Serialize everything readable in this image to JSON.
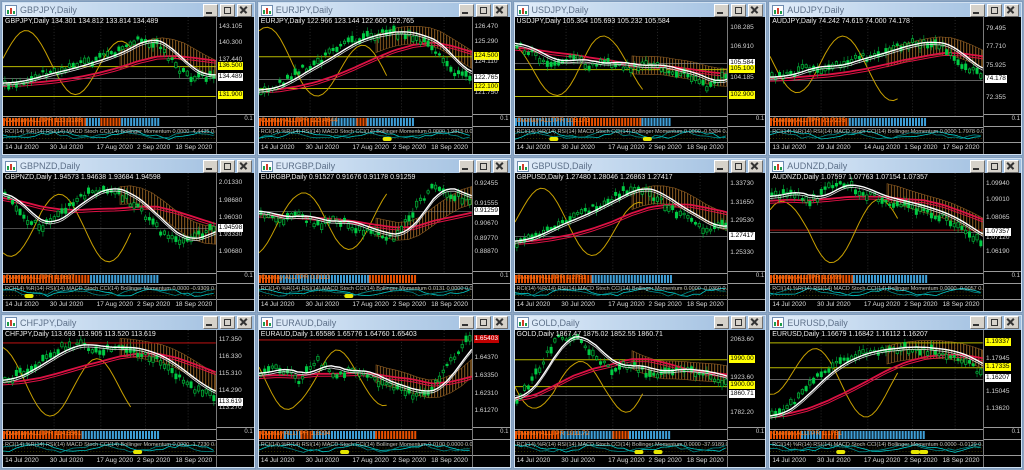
{
  "workspace": {
    "name": "MetaTrader multi-chart workspace",
    "grid": "4x3",
    "colors": {
      "workspace_bg": "#8ea6c2",
      "chart_bg": "#000000",
      "candle_green": "#00cc44",
      "ma_white": "#ffffff",
      "ma_red": "#dd1144",
      "osc_yellow": "#c8a000",
      "cloud_brown": "#8a5a20",
      "hist_orange": "#e85000",
      "hist_blue": "#3f9fd8",
      "osc_cyan": "#00c8c8",
      "level_yellow": "#ffff00",
      "current_white": "#ffffff"
    },
    "axis_mini_hist": "0.1",
    "window_buttons": [
      "minimize",
      "restore",
      "close"
    ]
  },
  "panels": [
    {
      "id": "gbpjpy",
      "title": "GBPJPY,Daily",
      "ohlc": "GBPJPY,Daily  134.301 134.812 133.814 134.489",
      "ind1": "Overlay ALLTPR 133.9188",
      "ind2": "RCI(14) %R(14) RSI(14) MACD Stoch CCI(14) Bollinger Momentum 0.0000 -4.4435 0.0",
      "dates": [
        "14 Jul 2020",
        "30 Jul 2020",
        "17 Aug 2020",
        "2 Sep 2020",
        "18 Sep 2020"
      ],
      "price_labels": [
        {
          "text": "143.105",
          "kind": "plain",
          "p": 0.1
        },
        {
          "text": "140.300",
          "kind": "plain",
          "p": 0.27
        },
        {
          "text": "137.440",
          "kind": "plain",
          "p": 0.44
        },
        {
          "text": "136.500",
          "kind": "yellow",
          "p": 0.5
        },
        {
          "text": "134.489",
          "kind": "white",
          "p": 0.62
        },
        {
          "text": "131.900",
          "kind": "yellow",
          "p": 0.8
        }
      ],
      "shape": [
        0.32,
        0.36,
        0.42,
        0.46,
        0.52,
        0.58,
        0.66,
        0.78,
        0.72,
        0.5,
        0.38,
        0.42
      ],
      "hist": [
        [
          "o",
          0.4
        ],
        [
          "b",
          0.07
        ],
        [
          "o",
          0.1
        ],
        [
          "b",
          0.18
        ]
      ],
      "red_lines": [],
      "osc_marks": []
    },
    {
      "id": "eurjpy",
      "title": "EURJPY,Daily",
      "ohlc": "EURJPY,Daily  122.966 123.144 122.600 122.765",
      "ind1": "Overlay ALLTPR 123.4644",
      "ind2": "RCI(14) %R(14) RSI(14) MACD Stoch CCI(14) Bollinger Momentum 0.0000 1.9815 0.0",
      "dates": [
        "14 Jul 2020",
        "30 Jul 2020",
        "17 Aug 2020",
        "2 Sep 2020",
        "18 Sep 2020"
      ],
      "price_labels": [
        {
          "text": "126.470",
          "kind": "plain",
          "p": 0.1
        },
        {
          "text": "125.290",
          "kind": "plain",
          "p": 0.26
        },
        {
          "text": "124.500",
          "kind": "yellow",
          "p": 0.4
        },
        {
          "text": "124.110",
          "kind": "plain",
          "p": 0.46
        },
        {
          "text": "122.765",
          "kind": "white",
          "p": 0.63
        },
        {
          "text": "122.100",
          "kind": "yellow",
          "p": 0.72
        },
        {
          "text": "121.750",
          "kind": "plain",
          "p": 0.78
        }
      ],
      "shape": [
        0.25,
        0.32,
        0.45,
        0.55,
        0.68,
        0.78,
        0.82,
        0.85,
        0.8,
        0.72,
        0.45,
        0.4
      ],
      "hist": [
        [
          "o",
          0.35
        ],
        [
          "b",
          0.12
        ],
        [
          "o",
          0.05
        ],
        [
          "b",
          0.23
        ]
      ],
      "red_lines": [],
      "osc_marks": [
        0.6
      ]
    },
    {
      "id": "usdjpy",
      "title": "USDJPY,Daily",
      "ohlc": "USDJPY,Daily  105.364 105.693 105.232 105.584",
      "ind1": "Overlay ALLTPR 105.173",
      "ind2": "RCI(14) %R(14) RSI(14) MACD Stoch CCI(14) Bollinger Momentum 0.0000 -0.5384 0.0",
      "dates": [
        "14 Jul 2020",
        "30 Jul 2020",
        "17 Aug 2020",
        "2 Sep 2020",
        "18 Sep 2020"
      ],
      "price_labels": [
        {
          "text": "108.285",
          "kind": "plain",
          "p": 0.11
        },
        {
          "text": "106.910",
          "kind": "plain",
          "p": 0.31
        },
        {
          "text": "105.584",
          "kind": "white",
          "p": 0.47
        },
        {
          "text": "105.100",
          "kind": "yellow",
          "p": 0.53
        },
        {
          "text": "104.185",
          "kind": "plain",
          "p": 0.63
        },
        {
          "text": "102.900",
          "kind": "yellow",
          "p": 0.8
        }
      ],
      "shape": [
        0.72,
        0.6,
        0.52,
        0.58,
        0.5,
        0.55,
        0.48,
        0.52,
        0.45,
        0.42,
        0.3,
        0.42
      ],
      "hist": [
        [
          "b",
          0.28
        ],
        [
          "o",
          0.33
        ],
        [
          "b",
          0.14
        ]
      ],
      "red_lines": [],
      "osc_marks": [
        0.18,
        0.62
      ]
    },
    {
      "id": "audjpy",
      "title": "AUDJPY,Daily",
      "ohlc": "AUDJPY,Daily  74.242 74.615 74.000 74.178",
      "ind1": "Overlay ALLTPR 73.7235",
      "ind2": "RCI(14) %R(14) RSI(14) MACD Stoch CCI(14) Bollinger Momentum 0.0000 1.7978 0.0",
      "dates": [
        "13 Jul 2020",
        "29 Jul 2020",
        "14 Aug 2020",
        "1 Sep 2020",
        "17 Sep 2020"
      ],
      "price_labels": [
        {
          "text": "79.495",
          "kind": "plain",
          "p": 0.12
        },
        {
          "text": "77.710",
          "kind": "plain",
          "p": 0.31
        },
        {
          "text": "75.925",
          "kind": "plain",
          "p": 0.5
        },
        {
          "text": "74.178",
          "kind": "white",
          "p": 0.64
        },
        {
          "text": "72.355",
          "kind": "plain",
          "p": 0.83
        }
      ],
      "shape": [
        0.38,
        0.42,
        0.5,
        0.48,
        0.55,
        0.6,
        0.66,
        0.72,
        0.74,
        0.7,
        0.5,
        0.42
      ],
      "hist": [
        [
          "o",
          0.38
        ],
        [
          "b",
          0.37
        ]
      ],
      "red_lines": [],
      "osc_marks": []
    },
    {
      "id": "gbpnzd",
      "title": "GBPNZD,Daily",
      "ohlc": "GBPNZD,Daily  1.94573 1.94638 1.93684 1.94598",
      "ind1": "Overlay ALLTPR 1.9697",
      "ind2": "RCI(14) %R(14) RSI(14) MACD Stoch CCI(14) Bollinger Momentum 0.0000 -0.9309 0.0",
      "dates": [
        "14 Jul 2020",
        "30 Jul 2020",
        "17 Aug 2020",
        "2 Sep 2020",
        "18 Sep 2020"
      ],
      "price_labels": [
        {
          "text": "2.01330",
          "kind": "plain",
          "p": 0.1
        },
        {
          "text": "1.98680",
          "kind": "plain",
          "p": 0.28
        },
        {
          "text": "1.96030",
          "kind": "plain",
          "p": 0.46
        },
        {
          "text": "1.94598",
          "kind": "white",
          "p": 0.56
        },
        {
          "text": "1.93330",
          "kind": "plain",
          "p": 0.63
        },
        {
          "text": "1.90680",
          "kind": "plain",
          "p": 0.81
        }
      ],
      "shape": [
        0.78,
        0.55,
        0.45,
        0.6,
        0.75,
        0.85,
        0.8,
        0.65,
        0.45,
        0.3,
        0.35,
        0.45
      ],
      "hist": [
        [
          "o",
          0.42
        ],
        [
          "b",
          0.33
        ]
      ],
      "red_lines": [],
      "osc_marks": [
        0.12
      ]
    },
    {
      "id": "eurgbp",
      "title": "EURGBP,Daily",
      "ohlc": "EURGBP,Daily  0.91527 0.91676 0.91178 0.91259",
      "ind1": "Overlay ALLTPR 0.9113",
      "ind2": "RCI(14) %R(14) RSI(14) MACD Stoch CCI(14) Bollinger Momentum 0.0131 0.0000 0.0",
      "dates": [
        "14 Jul 2020",
        "30 Jul 2020",
        "17 Aug 2020",
        "2 Sep 2020",
        "18 Sep 2020"
      ],
      "price_labels": [
        {
          "text": "0.92455",
          "kind": "plain",
          "p": 0.11
        },
        {
          "text": "0.91555",
          "kind": "plain",
          "p": 0.32
        },
        {
          "text": "0.91259",
          "kind": "white",
          "p": 0.39
        },
        {
          "text": "0.90670",
          "kind": "plain",
          "p": 0.52
        },
        {
          "text": "0.89770",
          "kind": "plain",
          "p": 0.67
        },
        {
          "text": "0.88870",
          "kind": "plain",
          "p": 0.81
        }
      ],
      "shape": [
        0.6,
        0.52,
        0.58,
        0.48,
        0.52,
        0.45,
        0.38,
        0.35,
        0.6,
        0.88,
        0.78,
        0.72
      ],
      "hist": [
        [
          "o",
          0.1
        ],
        [
          "b",
          0.43
        ],
        [
          "o",
          0.22
        ]
      ],
      "red_lines": [],
      "osc_marks": [
        0.42
      ]
    },
    {
      "id": "gbpusd",
      "title": "GBPUSD,Daily",
      "ohlc": "GBPUSD,Daily  1.27480 1.28046 1.26863 1.27417",
      "ind1": "Overlay ALLTPR 1.2751",
      "ind2": "RCI(14) %R(14) RSI(14) MACD Stoch CCI(14) Bollinger Momentum 0.0000 -0.0360 0.0",
      "dates": [
        "14 Jul 2020",
        "30 Jul 2020",
        "17 Aug 2020",
        "2 Sep 2020",
        "18 Sep 2020"
      ],
      "price_labels": [
        {
          "text": "1.33730",
          "kind": "plain",
          "p": 0.11
        },
        {
          "text": "1.31650",
          "kind": "plain",
          "p": 0.3
        },
        {
          "text": "1.29530",
          "kind": "plain",
          "p": 0.49
        },
        {
          "text": "1.27417",
          "kind": "white",
          "p": 0.64
        },
        {
          "text": "1.25330",
          "kind": "plain",
          "p": 0.82
        }
      ],
      "shape": [
        0.3,
        0.38,
        0.48,
        0.55,
        0.65,
        0.75,
        0.85,
        0.8,
        0.65,
        0.55,
        0.42,
        0.48
      ],
      "hist": [
        [
          "o",
          0.37
        ],
        [
          "b",
          0.38
        ]
      ],
      "red_lines": [],
      "osc_marks": []
    },
    {
      "id": "audnzd",
      "title": "AUDNZD,Daily",
      "ohlc": "AUDNZD,Daily  1.07597 1.07763 1.07154 1.07357",
      "ind1": "Overlay ALLTPR 1.0799",
      "ind2": "RCI(14) %R(14) RSI(14) MACD Stoch CCI(14) Bollinger Momentum 0.0000 -0.0057 0.0",
      "dates": [
        "14 Jul 2020",
        "30 Jul 2020",
        "17 Aug 2020",
        "2 Sep 2020",
        "18 Sep 2020"
      ],
      "price_labels": [
        {
          "text": "1.09940",
          "kind": "plain",
          "p": 0.11
        },
        {
          "text": "1.09010",
          "kind": "plain",
          "p": 0.27
        },
        {
          "text": "1.08065",
          "kind": "plain",
          "p": 0.46
        },
        {
          "text": "1.07357",
          "kind": "white",
          "p": 0.6
        },
        {
          "text": "1.07120",
          "kind": "plain",
          "p": 0.66
        },
        {
          "text": "1.06190",
          "kind": "plain",
          "p": 0.81
        }
      ],
      "shape": [
        0.75,
        0.82,
        0.7,
        0.85,
        0.88,
        0.78,
        0.72,
        0.68,
        0.62,
        0.55,
        0.42,
        0.3
      ],
      "hist": [
        [
          "o",
          0.4
        ],
        [
          "b",
          0.35
        ]
      ],
      "red_lines": [
        0.575
      ],
      "osc_marks": []
    },
    {
      "id": "chfjpy",
      "title": "CHFJPY,Daily",
      "ohlc": "CHFJPY,Daily  113.693 113.905 113.520 113.619",
      "ind1": "Overlay ALLTPR 114.5561",
      "ind2": "RCI(14) %R(14) RSI(14) MACD Stoch CCI(14) Bollinger Momentum 0.0000 -1.7230 0.0",
      "dates": [
        "14 Jul 2020",
        "30 Jul 2020",
        "17 Aug 2020",
        "2 Sep 2020",
        "18 Sep 2020"
      ],
      "price_labels": [
        {
          "text": "117.350",
          "kind": "plain",
          "p": 0.11
        },
        {
          "text": "116.330",
          "kind": "plain",
          "p": 0.28
        },
        {
          "text": "115.310",
          "kind": "plain",
          "p": 0.46
        },
        {
          "text": "114.290",
          "kind": "plain",
          "p": 0.63
        },
        {
          "text": "113.619",
          "kind": "white",
          "p": 0.74
        },
        {
          "text": "113.270",
          "kind": "plain",
          "p": 0.8
        }
      ],
      "shape": [
        0.48,
        0.58,
        0.7,
        0.82,
        0.85,
        0.8,
        0.82,
        0.78,
        0.7,
        0.55,
        0.4,
        0.32
      ],
      "hist": [
        [
          "o",
          0.38
        ],
        [
          "b",
          0.37
        ]
      ],
      "red_lines": [
        0.13
      ],
      "osc_marks": [
        0.63
      ]
    },
    {
      "id": "euraud",
      "title": "EURAUD,Daily",
      "ohlc": "EURAUD,Daily  1.65586 1.65776 1.64760 1.65403",
      "ind1": "Overlay ALLTPR 1.6294",
      "ind2": "RCI(14) %R(14) RSI(14) MACD Stoch CCI(14) Bollinger Momentum 0.0100 0.0000 0.0",
      "dates": [
        "14 Jul 2020",
        "30 Jul 2020",
        "17 Aug 2020",
        "2 Sep 2020",
        "18 Sep 2020"
      ],
      "price_labels": [
        {
          "text": "1.65403",
          "kind": "red",
          "p": 0.1
        },
        {
          "text": "1.64370",
          "kind": "plain",
          "p": 0.29
        },
        {
          "text": "1.63350",
          "kind": "plain",
          "p": 0.48
        },
        {
          "text": "1.62310",
          "kind": "plain",
          "p": 0.66
        },
        {
          "text": "1.61270",
          "kind": "plain",
          "p": 0.84
        }
      ],
      "shape": [
        0.55,
        0.62,
        0.5,
        0.68,
        0.55,
        0.6,
        0.48,
        0.42,
        0.35,
        0.4,
        0.7,
        0.92
      ],
      "hist": [
        [
          "o",
          0.12
        ],
        [
          "b",
          0.08
        ],
        [
          "o",
          0.06
        ],
        [
          "b",
          0.3
        ],
        [
          "o",
          0.19
        ]
      ],
      "red_lines": [
        0.1
      ],
      "osc_marks": [
        0.4
      ]
    },
    {
      "id": "gold",
      "title": "GOLD,Daily",
      "ohlc": "GOLD,Daily  1867.47 1875.02 1852.55 1860.71",
      "ind1": "Overlay ALLTPR 1911.72",
      "ind2": "RCI(14) %R(14) RSI(14) MACD Stoch CCI(14) Bollinger Momentum 0.0000 -37.9189 0.0",
      "dates": [
        "14 Jul 2020",
        "30 Jul 2020",
        "17 Aug 2020",
        "2 Sep 2020",
        "18 Sep 2020"
      ],
      "price_labels": [
        {
          "text": "2063.60",
          "kind": "plain",
          "p": 0.11
        },
        {
          "text": "1990.00",
          "kind": "yellow",
          "p": 0.3
        },
        {
          "text": "1923.60",
          "kind": "plain",
          "p": 0.5
        },
        {
          "text": "1900.00",
          "kind": "yellow",
          "p": 0.57
        },
        {
          "text": "1860.71",
          "kind": "white",
          "p": 0.66
        },
        {
          "text": "1782.20",
          "kind": "plain",
          "p": 0.86
        }
      ],
      "shape": [
        0.3,
        0.55,
        0.9,
        0.95,
        0.75,
        0.6,
        0.65,
        0.55,
        0.6,
        0.58,
        0.55,
        0.48
      ],
      "hist": [
        [
          "o",
          0.22
        ],
        [
          "b",
          0.25
        ],
        [
          "o",
          0.08
        ],
        [
          "b",
          0.2
        ]
      ],
      "red_lines": [],
      "osc_marks": [
        0.58,
        0.67
      ]
    },
    {
      "id": "eurusd",
      "title": "EURUSD,Daily",
      "ohlc": "EURUSD,Daily  1.16679 1.16842 1.16112 1.16207",
      "ind1": "Overlay ALLTPR 1.1751",
      "ind2": "RCI(14) %R(14) RSI(14) MACD Stoch CCI(14) Bollinger Momentum 0.0000 -0.0129 0.0",
      "dates": [
        "14 Jul 2020",
        "30 Jul 2020",
        "17 Aug 2020",
        "2 Sep 2020",
        "18 Sep 2020"
      ],
      "price_labels": [
        {
          "text": "1.19337",
          "kind": "yellow",
          "p": 0.13
        },
        {
          "text": "1.17945",
          "kind": "plain",
          "p": 0.3
        },
        {
          "text": "1.17335",
          "kind": "yellow",
          "p": 0.38
        },
        {
          "text": "1.16207",
          "kind": "white",
          "p": 0.5
        },
        {
          "text": "1.15045",
          "kind": "plain",
          "p": 0.64
        },
        {
          "text": "1.13620",
          "kind": "plain",
          "p": 0.82
        }
      ],
      "shape": [
        0.12,
        0.25,
        0.45,
        0.62,
        0.72,
        0.78,
        0.8,
        0.82,
        0.8,
        0.78,
        0.7,
        0.58
      ],
      "hist": [
        [
          "o",
          0.15
        ],
        [
          "b",
          0.1
        ],
        [
          "o",
          0.08
        ],
        [
          "b",
          0.42
        ]
      ],
      "red_lines": [],
      "osc_marks": [
        0.33,
        0.68,
        0.72
      ]
    }
  ]
}
